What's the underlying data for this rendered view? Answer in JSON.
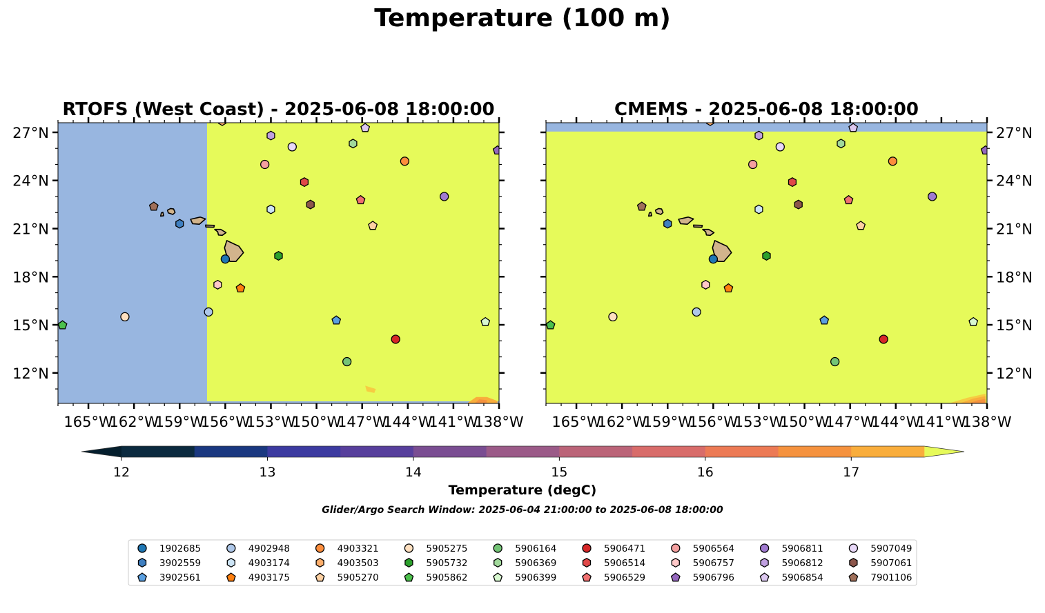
{
  "figure": {
    "suptitle": "Temperature (100 m)",
    "colorbar_label": "Temperature (degC)",
    "caption": "Glider/Argo Search Window: 2025-06-04 21:00:00 to 2025-06-08 18:00:00"
  },
  "colors": {
    "land": "#d2b48c",
    "nodata": "#98b6e0",
    "max_color": "#e6fa5a"
  },
  "chart_data": {
    "type": "heatmap",
    "x_ticks": [
      "165°W",
      "162°W",
      "159°W",
      "156°W",
      "153°W",
      "150°W",
      "147°W",
      "144°W",
      "141°W",
      "138°W"
    ],
    "x_tick_values": [
      -165,
      -162,
      -159,
      -156,
      -153,
      -150,
      -147,
      -144,
      -141,
      -138
    ],
    "y_ticks": [
      "27°N",
      "24°N",
      "21°N",
      "18°N",
      "15°N",
      "12°N"
    ],
    "y_tick_values": [
      27,
      24,
      21,
      18,
      15,
      12
    ],
    "xlim": [
      -167,
      -138
    ],
    "ylim": [
      10.1,
      27.6
    ],
    "colorbar": {
      "ticks": [
        12,
        13,
        14,
        15,
        16,
        17
      ],
      "range": [
        12,
        17.5
      ],
      "levels": [
        12,
        12.5,
        13,
        13.5,
        14,
        14.5,
        15,
        15.5,
        16,
        16.5,
        17,
        17.5
      ],
      "colors": [
        "#0b2a3f",
        "#1a3880",
        "#3c3aa0",
        "#573f9c",
        "#7a4d92",
        "#9b5a88",
        "#bb6478",
        "#d86c6a",
        "#ec7a55",
        "#f5923e",
        "#f9ad3c",
        "#f6cc42"
      ],
      "extend": "both",
      "under_color": "#051f2e",
      "over_color": "#e6fa5a"
    },
    "panels": [
      {
        "title": "RTOFS (West Coast) - 2025-06-08 18:00:00",
        "y_axis_side": "left",
        "field": "Temperature above 17.5 degC east of 157.2°W; no data west of 157.2°W",
        "data_boundary_lon": -157.2
      },
      {
        "title": "CMEMS - 2025-06-08 18:00:00",
        "y_axis_side": "right",
        "field": "Temperature above 17.5 degC across domain; no data north of 27.0°N",
        "data_boundary_lat": 27.05
      }
    ],
    "floats": [
      {
        "id": "1902685",
        "lon": -156.0,
        "lat": 19.1,
        "color": "#1f77b4",
        "marker": "circle"
      },
      {
        "id": "3902559",
        "lon": -159.0,
        "lat": 21.3,
        "color": "#3f7fc0",
        "marker": "hexagon"
      },
      {
        "id": "3902561",
        "lon": -148.7,
        "lat": 15.3,
        "color": "#5a9fe0",
        "marker": "pentagon"
      },
      {
        "id": "4902948",
        "lon": -157.1,
        "lat": 15.8,
        "color": "#aec7e8",
        "marker": "circle"
      },
      {
        "id": "4903174",
        "lon": -153.0,
        "lat": 22.2,
        "color": "#cce4f5",
        "marker": "hexagon"
      },
      {
        "id": "4903175",
        "lon": -155.0,
        "lat": 17.3,
        "color": "#ff7f0e",
        "marker": "pentagon"
      },
      {
        "id": "4903321",
        "lon": -144.2,
        "lat": 25.2,
        "color": "#fd8d3c",
        "marker": "circle"
      },
      {
        "id": "4903503",
        "lon": -156.2,
        "lat": 27.7,
        "color": "#fdae6b",
        "marker": "hexagon"
      },
      {
        "id": "5905270",
        "lon": -146.3,
        "lat": 21.2,
        "color": "#fdd0a2",
        "marker": "pentagon"
      },
      {
        "id": "5905275",
        "lon": -162.6,
        "lat": 15.5,
        "color": "#ffe0c0",
        "marker": "circle"
      },
      {
        "id": "5905732",
        "lon": -152.5,
        "lat": 19.3,
        "color": "#2ca02c",
        "marker": "hexagon"
      },
      {
        "id": "5905862",
        "lon": -166.7,
        "lat": 15.0,
        "color": "#4cc04c",
        "marker": "pentagon"
      },
      {
        "id": "5906164",
        "lon": -148.0,
        "lat": 12.7,
        "color": "#74c476",
        "marker": "circle"
      },
      {
        "id": "5906369",
        "lon": -147.6,
        "lat": 26.3,
        "color": "#a1d99b",
        "marker": "hexagon"
      },
      {
        "id": "5906399",
        "lon": -138.9,
        "lat": 15.2,
        "color": "#d8f8d0",
        "marker": "pentagon"
      },
      {
        "id": "5906471",
        "lon": -144.8,
        "lat": 14.1,
        "color": "#d62728",
        "marker": "circle"
      },
      {
        "id": "5906514",
        "lon": -150.8,
        "lat": 23.9,
        "color": "#e04848",
        "marker": "hexagon"
      },
      {
        "id": "5906529",
        "lon": -147.1,
        "lat": 22.8,
        "color": "#f07070",
        "marker": "pentagon"
      },
      {
        "id": "5906564",
        "lon": -153.4,
        "lat": 25.0,
        "color": "#f4a0a0",
        "marker": "circle"
      },
      {
        "id": "5906757",
        "lon": -156.5,
        "lat": 17.5,
        "color": "#ffc8c8",
        "marker": "hexagon"
      },
      {
        "id": "5906796",
        "lon": -138.1,
        "lat": 25.9,
        "color": "#9467bd",
        "marker": "pentagon"
      },
      {
        "id": "5906811",
        "lon": -141.6,
        "lat": 23.0,
        "color": "#a07ad0",
        "marker": "circle"
      },
      {
        "id": "5906812",
        "lon": -153.0,
        "lat": 26.8,
        "color": "#c0a0e0",
        "marker": "hexagon"
      },
      {
        "id": "5906854",
        "lon": -146.8,
        "lat": 27.3,
        "color": "#dcc8f0",
        "marker": "pentagon"
      },
      {
        "id": "5907049",
        "lon": -151.6,
        "lat": 26.1,
        "color": "#e8d8f8",
        "marker": "circle"
      },
      {
        "id": "5907061",
        "lon": -150.4,
        "lat": 22.5,
        "color": "#8c564b",
        "marker": "hexagon"
      },
      {
        "id": "7901106",
        "lon": -160.7,
        "lat": 22.4,
        "color": "#a0705a",
        "marker": "pentagon"
      }
    ]
  }
}
